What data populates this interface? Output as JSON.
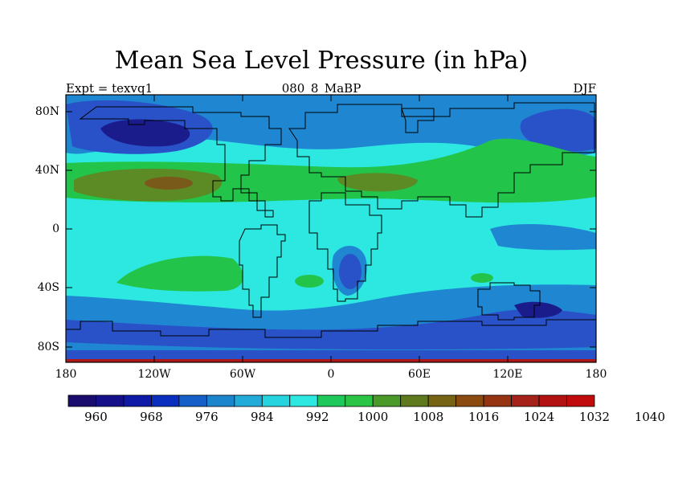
{
  "title": "Mean Sea Level Pressure (in hPa)",
  "left_subtitle": "Expt = texvq1",
  "center_subtitle": "080_8_MaBP",
  "right_subtitle": "DJF",
  "lat_ticks": [
    "80N",
    "40N",
    "0",
    "40S",
    "80S"
  ],
  "lon_ticks": [
    "180",
    "120W",
    "60W",
    "0",
    "60E",
    "120E",
    "180"
  ],
  "colorbar": {
    "labels": [
      "960",
      "968",
      "976",
      "984",
      "992",
      "1000",
      "1008",
      "1016",
      "1024",
      "1032",
      "1040"
    ],
    "colors": [
      "#1a0c6e",
      "#15108a",
      "#0f1aa6",
      "#0a2fbe",
      "#1460c8",
      "#1a85cc",
      "#22aad8",
      "#26d4e0",
      "#2de8e0",
      "#1ec85a",
      "#2cc444",
      "#4a9a2a",
      "#5e7a1c",
      "#766414",
      "#8a4a10",
      "#963412",
      "#a4221a",
      "#b21212",
      "#c00c0c"
    ]
  },
  "colors": {
    "field_bg": "#2de8e0",
    "low_deep": "#1a1c8c",
    "low": "#2a52c8",
    "mid_low": "#1f86d2",
    "high": "#22c44a",
    "higher": "#5c8a24",
    "highest": "#7a5a1a",
    "coast": "#000000",
    "bottom_strip": "#b01818"
  }
}
